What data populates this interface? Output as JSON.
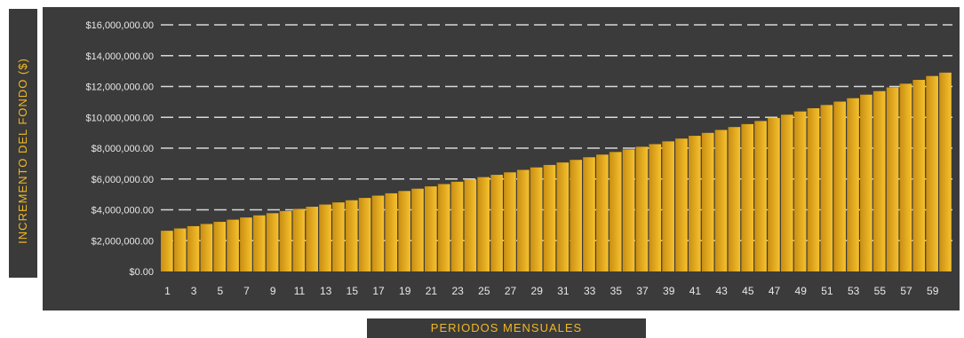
{
  "chart_data": {
    "type": "area",
    "title": "",
    "xlabel": "PERIODOS MENSUALES",
    "ylabel": "INCREMENTO DEL FONDO ($)",
    "x": [
      1,
      2,
      3,
      4,
      5,
      6,
      7,
      8,
      9,
      10,
      11,
      12,
      13,
      14,
      15,
      16,
      17,
      18,
      19,
      20,
      21,
      22,
      23,
      24,
      25,
      26,
      27,
      28,
      29,
      30,
      31,
      32,
      33,
      34,
      35,
      36,
      37,
      38,
      39,
      40,
      41,
      42,
      43,
      44,
      45,
      46,
      47,
      48,
      49,
      50,
      51,
      52,
      53,
      54,
      55,
      56,
      57,
      58,
      59,
      60
    ],
    "x_tick_labels": [
      "1",
      "3",
      "5",
      "7",
      "9",
      "11",
      "13",
      "15",
      "17",
      "19",
      "21",
      "23",
      "25",
      "27",
      "29",
      "31",
      "33",
      "35",
      "37",
      "39",
      "41",
      "43",
      "45",
      "47",
      "49",
      "51",
      "53",
      "55",
      "57",
      "59"
    ],
    "values": [
      2640000,
      2790000,
      2940000,
      3080000,
      3220000,
      3360000,
      3500000,
      3640000,
      3780000,
      3920000,
      4060000,
      4200000,
      4340000,
      4480000,
      4620000,
      4770000,
      4920000,
      5070000,
      5220000,
      5370000,
      5520000,
      5670000,
      5820000,
      5970000,
      6120000,
      6270000,
      6430000,
      6590000,
      6750000,
      6910000,
      7070000,
      7240000,
      7410000,
      7580000,
      7750000,
      7920000,
      8090000,
      8260000,
      8440000,
      8620000,
      8800000,
      8990000,
      9180000,
      9370000,
      9560000,
      9760000,
      9960000,
      10170000,
      10380000,
      10590000,
      10800000,
      11020000,
      11240000,
      11470000,
      11700000,
      11940000,
      12180000,
      12430000,
      12680000,
      12900000
    ],
    "ylim": [
      0,
      16000000
    ],
    "y_tick_labels": [
      "$0.00",
      "$2,000,000.00",
      "$4,000,000.00",
      "$6,000,000.00",
      "$8,000,000.00",
      "$10,000,000.00",
      "$12,000,000.00",
      "$14,000,000.00",
      "$16,000,000.00"
    ],
    "grid": true,
    "legend": false,
    "colors": {
      "bar_light": "#f6c12e",
      "bar_dark": "#c98e12",
      "plot_bg": "#3b3b3b",
      "label_text": "#f0b822",
      "tick_text": "#e8e8e8",
      "grid": "#d8d8d8"
    }
  }
}
